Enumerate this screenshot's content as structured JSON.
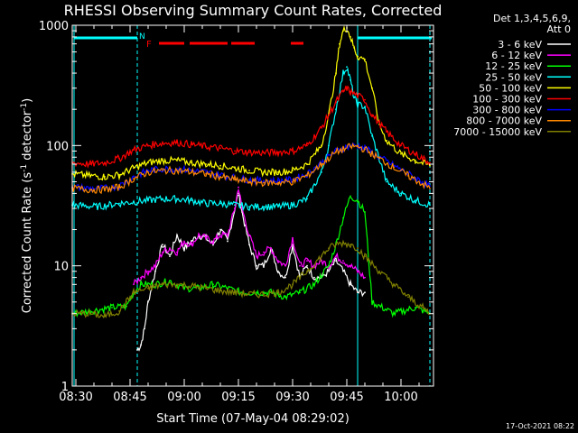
{
  "chart_data": {
    "type": "line",
    "title": "RHESSI Observing Summary Count Rates, Corrected",
    "xlabel": "Start Time (07-May-04 08:29:02)",
    "ylabel": "Corrected Count Rate (s",
    "ylabel_sup1": "-1",
    "ylabel_mid": " detector",
    "ylabel_sup2": "-1",
    "ylabel_end": ")",
    "yscale": "log",
    "ylim": [
      1,
      1000
    ],
    "xlim_minutes": [
      29.0,
      129.0
    ],
    "x_ticks": [
      {
        "label": "08:30",
        "minute": 30
      },
      {
        "label": "08:45",
        "minute": 45
      },
      {
        "label": "09:00",
        "minute": 60
      },
      {
        "label": "09:15",
        "minute": 75
      },
      {
        "label": "09:30",
        "minute": 90
      },
      {
        "label": "09:45",
        "minute": 105
      },
      {
        "label": "10:00",
        "minute": 120
      }
    ],
    "y_ticks": [
      {
        "label": "1",
        "value": 1
      },
      {
        "label": "10",
        "value": 10
      },
      {
        "label": "100",
        "value": 100
      },
      {
        "label": "1000",
        "value": 1000
      }
    ],
    "legend_title": "Det 1,3,4,5,6,9,",
    "legend_subtitle": "Att 0",
    "legend_position": "top-right",
    "annotations": {
      "night_label": "N",
      "flare_label": "F",
      "night_color": "#00ffff",
      "flare_color": "#ff0000",
      "night_bars": [
        [
          29.5,
          47.0
        ],
        [
          108.0,
          128.5
        ]
      ],
      "flare_bars": [
        [
          53.0,
          60.0
        ],
        [
          61.5,
          72.0
        ],
        [
          73.0,
          79.5
        ],
        [
          89.5,
          93.0
        ]
      ],
      "vlines_dashed": [
        47.0,
        128.0
      ],
      "vline_solid": [
        29.5,
        108.0
      ]
    },
    "series": [
      {
        "name": "3 - 6 keV",
        "color": "#ffffff",
        "x": [
          47,
          48,
          49,
          50,
          52,
          54,
          56,
          58,
          60,
          62,
          64,
          66,
          68,
          70,
          72,
          74,
          75,
          76,
          78,
          80,
          82,
          84,
          86,
          88,
          90,
          92,
          94,
          96,
          98,
          100,
          102,
          104,
          106,
          108,
          110
        ],
        "y": [
          2,
          2.2,
          3,
          5,
          9,
          15,
          12,
          18,
          14,
          16,
          18,
          17,
          15,
          20,
          16,
          30,
          40,
          28,
          15,
          10,
          10,
          14,
          9,
          8,
          15,
          8,
          10,
          8,
          8,
          9,
          11,
          9,
          7,
          6,
          6
        ]
      },
      {
        "name": "6 - 12 keV",
        "color": "#ff00ff",
        "x": [
          46,
          48,
          50,
          52,
          54,
          56,
          58,
          60,
          62,
          64,
          66,
          68,
          70,
          72,
          74,
          75,
          76,
          78,
          80,
          82,
          84,
          86,
          88,
          90,
          92,
          94,
          96,
          98,
          100,
          102,
          104,
          106,
          108,
          110
        ],
        "y": [
          7,
          8,
          9,
          10,
          13,
          14,
          13,
          16,
          15,
          18,
          17,
          16,
          18,
          18,
          30,
          45,
          30,
          18,
          12,
          13,
          14,
          11,
          10,
          17,
          10,
          11,
          10,
          11,
          10,
          12,
          11,
          10,
          9,
          8
        ]
      },
      {
        "name": "12 - 25 keV",
        "color": "#00ff00",
        "x": [
          29,
          34,
          40,
          44,
          46,
          48,
          52,
          56,
          60,
          64,
          68,
          72,
          76,
          80,
          84,
          88,
          92,
          96,
          100,
          102,
          104,
          106,
          108,
          110,
          112,
          118,
          124,
          128
        ],
        "y": [
          4,
          4.2,
          4.5,
          4.6,
          6,
          7,
          7,
          7.5,
          6.5,
          6.5,
          7,
          6.5,
          6,
          6,
          6,
          5.5,
          6,
          7,
          10,
          15,
          25,
          38,
          35,
          28,
          5,
          4,
          4.5,
          4
        ]
      },
      {
        "name": "25 - 50 keV",
        "color": "#00ffff",
        "x": [
          29,
          36,
          42,
          46,
          50,
          54,
          58,
          62,
          66,
          70,
          74,
          78,
          82,
          86,
          90,
          94,
          98,
          100,
          102,
          104,
          105,
          106,
          107,
          108,
          110,
          112,
          116,
          120,
          124,
          128
        ],
        "y": [
          32,
          31,
          33,
          34,
          35,
          36,
          36,
          35,
          33,
          33,
          32,
          31,
          31,
          31,
          32,
          36,
          60,
          100,
          200,
          400,
          450,
          350,
          250,
          220,
          210,
          120,
          50,
          40,
          35,
          32
        ]
      },
      {
        "name": "50 - 100 keV",
        "color": "#ffff00",
        "x": [
          29,
          34,
          38,
          42,
          46,
          50,
          54,
          58,
          62,
          66,
          70,
          74,
          78,
          82,
          86,
          90,
          94,
          98,
          100,
          102,
          103,
          104,
          105,
          106,
          107,
          108,
          110,
          112,
          114,
          116,
          120,
          124,
          128
        ],
        "y": [
          58,
          56,
          55,
          57,
          65,
          72,
          75,
          75,
          72,
          70,
          68,
          65,
          62,
          60,
          60,
          62,
          70,
          100,
          180,
          400,
          700,
          900,
          950,
          800,
          650,
          550,
          520,
          300,
          150,
          110,
          85,
          75,
          68
        ]
      },
      {
        "name": "100 - 300 keV",
        "color": "#ff0000",
        "x": [
          29,
          34,
          38,
          42,
          46,
          50,
          54,
          58,
          62,
          66,
          70,
          74,
          78,
          82,
          86,
          90,
          94,
          98,
          100,
          102,
          104,
          105,
          106,
          108,
          110,
          112,
          116,
          120,
          124,
          128
        ],
        "y": [
          72,
          70,
          72,
          78,
          92,
          100,
          105,
          106,
          102,
          98,
          95,
          90,
          88,
          87,
          88,
          90,
          100,
          140,
          180,
          230,
          280,
          300,
          280,
          260,
          240,
          180,
          130,
          100,
          85,
          72
        ]
      },
      {
        "name": "300 - 800 keV",
        "color": "#0000ff",
        "x": [
          29,
          34,
          38,
          42,
          46,
          50,
          54,
          58,
          62,
          66,
          70,
          74,
          78,
          82,
          86,
          90,
          94,
          98,
          102,
          106,
          108,
          110,
          114,
          118,
          122,
          126,
          128
        ],
        "y": [
          45,
          44,
          44,
          46,
          55,
          62,
          64,
          64,
          62,
          60,
          57,
          54,
          52,
          51,
          51,
          52,
          58,
          72,
          90,
          100,
          100,
          95,
          80,
          68,
          58,
          50,
          46
        ]
      },
      {
        "name": "800 - 7000 keV",
        "color": "#ff8800",
        "x": [
          29,
          34,
          38,
          42,
          46,
          50,
          54,
          58,
          62,
          66,
          70,
          74,
          78,
          82,
          86,
          90,
          94,
          98,
          102,
          106,
          108,
          110,
          114,
          118,
          122,
          126,
          128
        ],
        "y": [
          44,
          43,
          43,
          45,
          53,
          60,
          62,
          62,
          60,
          58,
          55,
          52,
          50,
          49,
          49,
          50,
          56,
          70,
          88,
          98,
          98,
          93,
          78,
          66,
          56,
          48,
          44
        ]
      },
      {
        "name": "7000 - 15000 keV",
        "color": "#808000",
        "x": [
          29,
          34,
          38,
          42,
          44,
          46,
          50,
          54,
          58,
          62,
          66,
          70,
          74,
          78,
          82,
          86,
          90,
          94,
          98,
          100,
          102,
          104,
          106,
          108,
          110,
          114,
          118,
          122,
          126,
          128
        ],
        "y": [
          4,
          4,
          3.8,
          4.2,
          5,
          6,
          6.5,
          7,
          7,
          6.8,
          6.5,
          6.2,
          6,
          5.8,
          5.8,
          6,
          7,
          9,
          12,
          14,
          15,
          15.5,
          15,
          14,
          12,
          9,
          7,
          5.5,
          4.5,
          4
        ]
      }
    ]
  },
  "footer": {
    "timestamp": "17-Oct-2021 08:22"
  }
}
